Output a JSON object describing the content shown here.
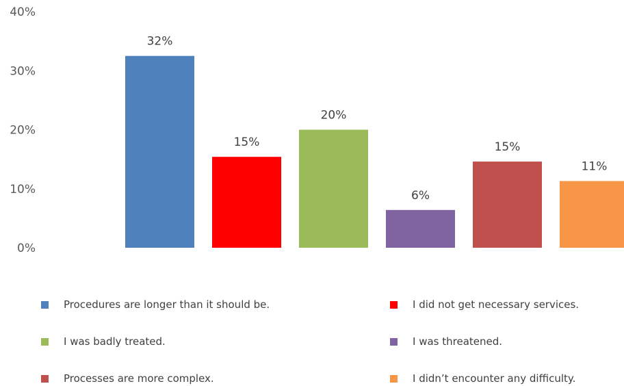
{
  "chart_data": {
    "type": "bar",
    "title": "",
    "xlabel": "",
    "ylabel": "",
    "ylim": [
      0,
      40
    ],
    "yticks": [
      "0%",
      "10%",
      "20%",
      "30%",
      "40%"
    ],
    "grid": false,
    "legend_position": "bottom",
    "categories": [
      "Procedures are longer than it should be.",
      "I did not get necessary services.",
      "I was badly treated.",
      "I was threatened.",
      "Processes are more complex.",
      "I didn’t encounter any difficulty."
    ],
    "values": [
      32.5,
      15.4,
      20.0,
      6.4,
      14.6,
      11.3
    ],
    "data_labels": [
      "32%",
      "15%",
      "20%",
      "6%",
      "15%",
      "11%"
    ],
    "colors": [
      "#4f81bd",
      "#ff0000",
      "#9bbb59",
      "#8064a2",
      "#c0504d",
      "#f79646"
    ]
  }
}
